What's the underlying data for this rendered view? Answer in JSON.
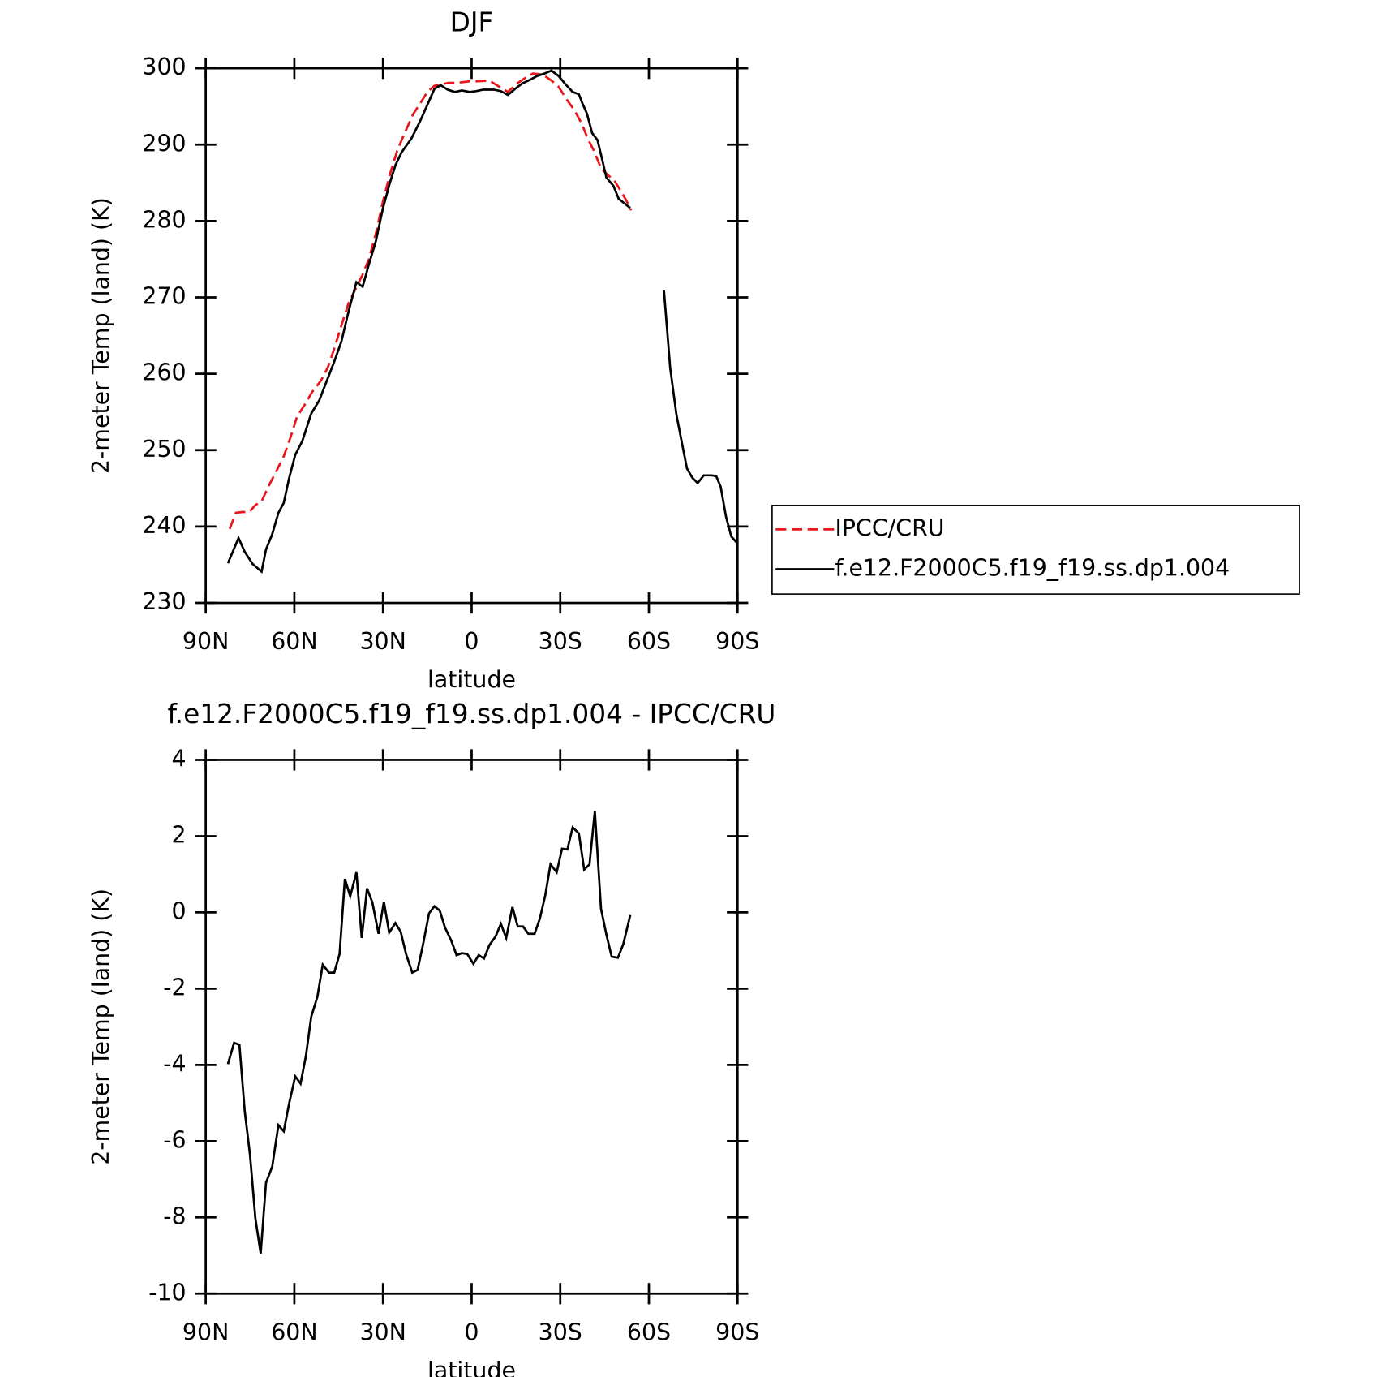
{
  "chart_data": [
    {
      "type": "line",
      "title": "DJF",
      "xlabel": "latitude",
      "ylabel": "2-meter Temp (land) (K)",
      "xlim": [
        90,
        -90
      ],
      "xticks": [
        {
          "value": 90,
          "label": "90N"
        },
        {
          "value": 60,
          "label": "60N"
        },
        {
          "value": 30,
          "label": "30N"
        },
        0,
        {
          "value": -30,
          "label": "30S"
        },
        {
          "value": -60,
          "label": "60S"
        },
        {
          "value": -90,
          "label": "90S"
        }
      ],
      "ylim": [
        230,
        300
      ],
      "yticks": [
        230,
        240,
        250,
        260,
        270,
        280,
        290,
        300
      ],
      "legend": "right",
      "series": [
        {
          "name": "IPCC/CRU",
          "color": "#e8161b",
          "line_style": "dashed",
          "x": [
            81.9,
            79.8,
            77.7,
            75.3,
            73.2,
            71.1,
            68.7,
            66.3,
            63.6,
            61.2,
            59.1,
            56.4,
            54.0,
            51.0,
            48.6,
            46.5,
            44.1,
            41.7,
            39.3,
            36.9,
            34.8,
            32.4,
            30.0,
            27.6,
            25.2,
            22.8,
            19.8,
            17.4,
            15.0,
            12.6,
            10.2,
            7.8,
            4.8,
            0.6,
            -2.4,
            -6.0,
            -9.3,
            -12.3,
            -15.0,
            -18.0,
            -20.7,
            -24.0,
            -27.0,
            -29.4,
            -32.4,
            -34.8,
            -37.2,
            -39.3,
            -41.4,
            -43.8,
            -46.2,
            -48.3,
            -50.4,
            -52.2,
            -54.0
          ],
          "values": [
            239.7,
            241.8,
            241.9,
            241.9,
            242.8,
            243.3,
            245.3,
            247.1,
            249.2,
            251.8,
            254.4,
            256.0,
            257.6,
            259.1,
            260.9,
            263.3,
            266.3,
            269.2,
            271.1,
            273.0,
            275.0,
            278.4,
            282.6,
            286.2,
            289.2,
            291.4,
            294.0,
            295.4,
            296.9,
            297.7,
            297.9,
            298.1,
            298.1,
            298.3,
            298.3,
            298.4,
            297.6,
            296.9,
            297.9,
            298.7,
            299.3,
            299.2,
            298.4,
            297.6,
            295.8,
            294.5,
            292.8,
            290.8,
            289.2,
            286.9,
            286.0,
            285.3,
            284.0,
            282.8,
            281.4
          ]
        },
        {
          "name": "f.e12.F2000C5.f19_f19.ss.dp1.004",
          "color": "#000000",
          "line_style": "solid",
          "x": [
            82.5,
            78.9,
            76.8,
            74.1,
            71.1,
            69.6,
            67.5,
            65.4,
            63.6,
            61.8,
            59.7,
            57.3,
            54.3,
            51.6,
            49.8,
            46.5,
            44.1,
            41.7,
            39.0,
            36.9,
            34.8,
            32.4,
            30.0,
            27.6,
            25.8,
            23.7,
            20.4,
            17.4,
            15.0,
            12.6,
            10.5,
            8.1,
            5.7,
            3.3,
            0.6,
            -1.5,
            -3.9,
            -7.5,
            -9.9,
            -12.3,
            -14.7,
            -17.1,
            -19.8,
            -22.2,
            -24.6,
            -27.0,
            -29.4,
            -31.8,
            -34.2,
            -36.3,
            -37.5,
            -39.0,
            -40.8,
            -42.6,
            -44.4,
            -45.6,
            -48.0,
            -49.8,
            -53.7,
            -60.0,
            -65.1,
            -67.2,
            -69.3,
            -71.1,
            -72.9,
            -74.7,
            -76.5,
            -78.6,
            -81.3,
            -82.8,
            -84.3,
            -86.1,
            -87.9,
            -89.7
          ],
          "values": [
            235.2,
            238.5,
            236.7,
            235.1,
            234.1,
            237.0,
            239.0,
            241.8,
            243.1,
            246.3,
            249.4,
            251.2,
            254.8,
            256.5,
            258.3,
            261.6,
            264.2,
            268.1,
            272.0,
            271.4,
            274.3,
            277.4,
            281.7,
            285.1,
            287.3,
            289.0,
            290.8,
            293.1,
            295.2,
            297.3,
            297.8,
            297.2,
            296.9,
            297.1,
            296.9,
            297.0,
            297.2,
            297.2,
            297.0,
            296.5,
            297.3,
            298.0,
            298.5,
            299.0,
            299.3,
            299.7,
            299.0,
            297.9,
            296.9,
            296.6,
            295.4,
            294.1,
            291.5,
            290.6,
            287.7,
            285.7,
            284.6,
            282.9,
            281.7,
            null,
            270.9,
            260.8,
            254.7,
            251.1,
            247.6,
            246.4,
            245.7,
            246.7,
            246.7,
            246.6,
            245.2,
            241.3,
            238.7,
            237.9
          ]
        }
      ]
    },
    {
      "type": "line",
      "title": "f.e12.F2000C5.f19_f19.ss.dp1.004 - IPCC/CRU",
      "xlabel": "latitude",
      "ylabel": "2-meter Temp (land) (K)",
      "xlim": [
        90,
        -90
      ],
      "xticks": [
        {
          "value": 90,
          "label": "90N"
        },
        {
          "value": 60,
          "label": "60N"
        },
        {
          "value": 30,
          "label": "30N"
        },
        0,
        {
          "value": -30,
          "label": "30S"
        },
        {
          "value": -60,
          "label": "60S"
        },
        {
          "value": -90,
          "label": "90S"
        }
      ],
      "ylim": [
        -10,
        4
      ],
      "yticks": [
        -10,
        -8,
        -6,
        -4,
        -2,
        0,
        2,
        4
      ],
      "series": [
        {
          "color": "#000000",
          "line_style": "solid",
          "x": [
            82.5,
            80.4,
            78.6,
            76.8,
            75.0,
            73.2,
            71.4,
            69.6,
            67.5,
            65.4,
            63.6,
            61.8,
            59.7,
            57.9,
            56.1,
            54.3,
            52.2,
            50.4,
            48.3,
            46.5,
            44.7,
            42.9,
            41.1,
            39.0,
            37.2,
            35.4,
            33.6,
            31.5,
            29.7,
            27.9,
            25.8,
            24.0,
            22.2,
            20.1,
            18.3,
            16.5,
            14.4,
            12.6,
            10.8,
            9.0,
            6.9,
            5.1,
            3.3,
            1.5,
            -0.6,
            -2.4,
            -4.2,
            -6.0,
            -8.1,
            -9.9,
            -11.7,
            -13.8,
            -15.6,
            -17.4,
            -19.2,
            -21.3,
            -23.1,
            -24.9,
            -26.7,
            -28.8,
            -30.6,
            -32.4,
            -34.2,
            -36.3,
            -38.1,
            -39.9,
            -41.7,
            -43.8,
            -45.6,
            -47.4,
            -49.5,
            -51.3,
            -53.7
          ],
          "values": [
            -3.98,
            -3.42,
            -3.47,
            -5.21,
            -6.37,
            -8.02,
            -8.95,
            -7.09,
            -6.67,
            -5.58,
            -5.74,
            -5.02,
            -4.3,
            -4.49,
            -3.77,
            -2.74,
            -2.21,
            -1.37,
            -1.58,
            -1.58,
            -1.09,
            0.88,
            0.42,
            1.05,
            -0.67,
            0.63,
            0.26,
            -0.56,
            0.28,
            -0.53,
            -0.28,
            -0.51,
            -1.09,
            -1.58,
            -1.51,
            -0.86,
            -0.02,
            0.16,
            0.05,
            -0.4,
            -0.74,
            -1.12,
            -1.07,
            -1.09,
            -1.35,
            -1.12,
            -1.21,
            -0.86,
            -0.63,
            -0.3,
            -0.67,
            0.14,
            -0.37,
            -0.37,
            -0.56,
            -0.56,
            -0.16,
            0.44,
            1.26,
            1.05,
            1.67,
            1.65,
            2.23,
            2.07,
            1.12,
            1.26,
            2.65,
            0.09,
            -0.58,
            -1.16,
            -1.19,
            -0.84,
            -0.07
          ]
        }
      ]
    }
  ]
}
